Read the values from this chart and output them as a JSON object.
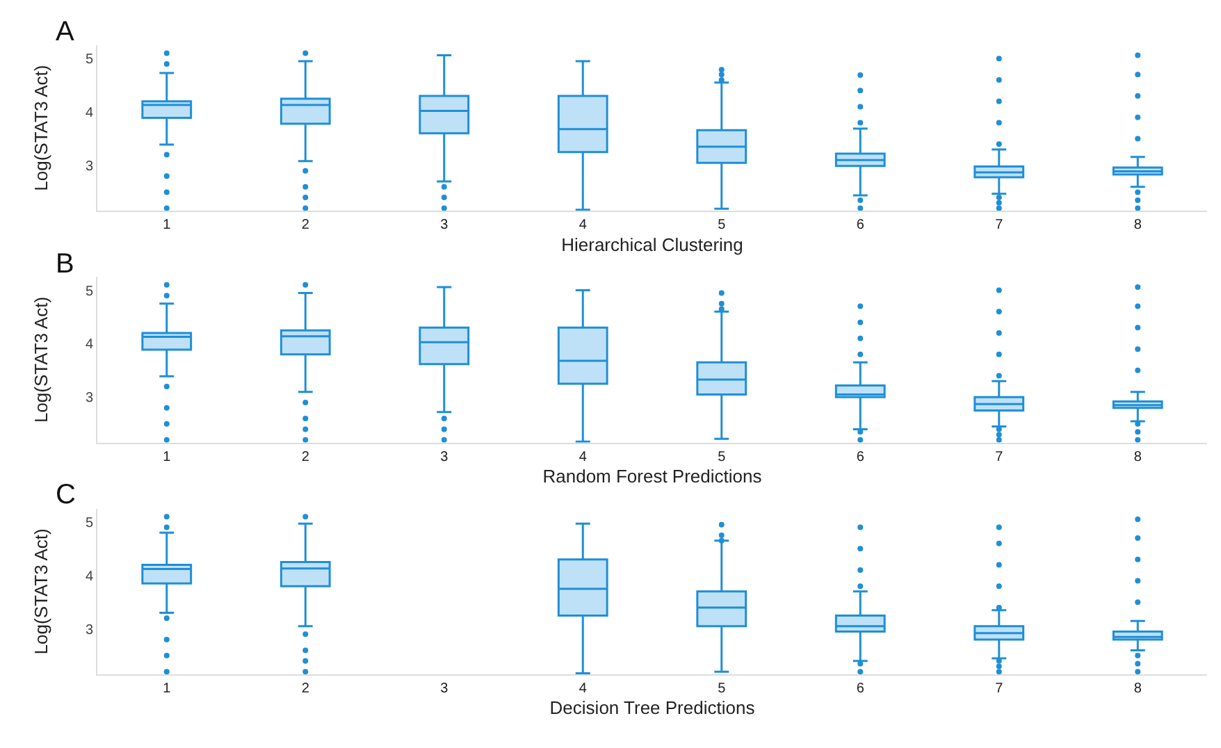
{
  "chart_data": [
    {
      "type": "box",
      "title": "A",
      "xlabel": "Hierarchical Clustering",
      "ylabel": "Log(STAT3 Act)",
      "categories": [
        "1",
        "2",
        "3",
        "4",
        "5",
        "6",
        "7",
        "8"
      ],
      "ylim": [
        2.15,
        5.25
      ],
      "yticks": [
        3,
        4,
        5
      ],
      "color": "#bfe1f8",
      "boxes": [
        {
          "low": 3.39,
          "q1": 3.89,
          "median": 4.13,
          "q3": 4.2,
          "high": 4.73,
          "outliers": [
            5.1,
            4.9,
            3.2,
            2.8,
            2.5,
            2.2
          ]
        },
        {
          "low": 3.08,
          "q1": 3.78,
          "median": 4.13,
          "q3": 4.25,
          "high": 4.95,
          "outliers": [
            5.1,
            2.9,
            2.6,
            2.4,
            2.2
          ]
        },
        {
          "low": 2.7,
          "q1": 3.6,
          "median": 4.02,
          "q3": 4.3,
          "high": 5.06,
          "outliers": [
            2.6,
            2.4,
            2.2
          ]
        },
        {
          "low": 2.17,
          "q1": 3.25,
          "median": 3.68,
          "q3": 4.3,
          "high": 4.95
        },
        {
          "low": 2.19,
          "q1": 3.05,
          "median": 3.35,
          "q3": 3.66,
          "high": 4.55,
          "outliers": [
            4.79,
            4.7,
            4.6
          ]
        },
        {
          "low": 2.44,
          "q1": 2.99,
          "median": 3.1,
          "q3": 3.22,
          "high": 3.69,
          "outliers": [
            4.69,
            4.4,
            4.1,
            3.8,
            2.35,
            2.2
          ]
        },
        {
          "low": 2.47,
          "q1": 2.78,
          "median": 2.87,
          "q3": 2.98,
          "high": 3.3,
          "outliers": [
            5.0,
            4.6,
            4.2,
            3.8,
            3.4,
            2.4,
            2.3,
            2.2
          ]
        },
        {
          "low": 2.6,
          "q1": 2.83,
          "median": 2.89,
          "q3": 2.96,
          "high": 3.16,
          "outliers": [
            5.06,
            4.7,
            4.3,
            3.9,
            3.5,
            2.5,
            2.35,
            2.2
          ]
        }
      ]
    },
    {
      "type": "box",
      "title": "B",
      "xlabel": "Random Forest Predictions",
      "ylabel": "Log(STAT3 Act)",
      "categories": [
        "1",
        "2",
        "3",
        "4",
        "5",
        "6",
        "7",
        "8"
      ],
      "ylim": [
        2.15,
        5.25
      ],
      "yticks": [
        3,
        4,
        5
      ],
      "color": "#bfe1f8",
      "boxes": [
        {
          "low": 3.39,
          "q1": 3.89,
          "median": 4.13,
          "q3": 4.2,
          "high": 4.75,
          "outliers": [
            5.1,
            4.9,
            3.2,
            2.8,
            2.5,
            2.2
          ]
        },
        {
          "low": 3.1,
          "q1": 3.8,
          "median": 4.14,
          "q3": 4.25,
          "high": 4.95,
          "outliers": [
            5.1,
            2.9,
            2.6,
            2.4,
            2.2
          ]
        },
        {
          "low": 2.72,
          "q1": 3.62,
          "median": 4.03,
          "q3": 4.3,
          "high": 5.06,
          "outliers": [
            2.6,
            2.4,
            2.2
          ]
        },
        {
          "low": 2.17,
          "q1": 3.25,
          "median": 3.68,
          "q3": 4.3,
          "high": 5.0
        },
        {
          "low": 2.22,
          "q1": 3.05,
          "median": 3.33,
          "q3": 3.65,
          "high": 4.6,
          "outliers": [
            4.95,
            4.75,
            4.65
          ]
        },
        {
          "low": 2.4,
          "q1": 3.0,
          "median": 3.05,
          "q3": 3.22,
          "high": 3.65,
          "outliers": [
            4.7,
            4.4,
            4.1,
            3.8,
            2.35,
            2.2
          ]
        },
        {
          "low": 2.45,
          "q1": 2.75,
          "median": 2.87,
          "q3": 3.0,
          "high": 3.3,
          "outliers": [
            5.0,
            4.6,
            4.2,
            3.8,
            3.4,
            2.4,
            2.3,
            2.2
          ]
        },
        {
          "low": 2.55,
          "q1": 2.8,
          "median": 2.85,
          "q3": 2.92,
          "high": 3.1,
          "outliers": [
            5.06,
            4.7,
            4.3,
            3.9,
            3.5,
            2.5,
            2.35,
            2.2
          ]
        }
      ]
    },
    {
      "type": "box",
      "title": "C",
      "xlabel": "Decision Tree Predictions",
      "ylabel": "Log(STAT3 Act)",
      "categories": [
        "1",
        "2",
        "3",
        "4",
        "5",
        "6",
        "7",
        "8"
      ],
      "ylim": [
        2.15,
        5.25
      ],
      "yticks": [
        3,
        4,
        5
      ],
      "color": "#bfe1f8",
      "boxes": [
        {
          "low": 3.3,
          "q1": 3.85,
          "median": 4.12,
          "q3": 4.2,
          "high": 4.8,
          "outliers": [
            5.1,
            4.9,
            3.2,
            2.8,
            2.5,
            2.2
          ]
        },
        {
          "low": 3.05,
          "q1": 3.8,
          "median": 4.13,
          "q3": 4.25,
          "high": 4.97,
          "outliers": [
            5.1,
            2.9,
            2.6,
            2.4,
            2.2
          ]
        },
        null,
        {
          "low": 2.17,
          "q1": 3.25,
          "median": 3.75,
          "q3": 4.3,
          "high": 4.97
        },
        {
          "low": 2.2,
          "q1": 3.05,
          "median": 3.4,
          "q3": 3.7,
          "high": 4.65,
          "outliers": [
            4.95,
            4.75,
            4.65
          ]
        },
        {
          "low": 2.4,
          "q1": 2.95,
          "median": 3.05,
          "q3": 3.25,
          "high": 3.7,
          "outliers": [
            4.9,
            4.5,
            4.1,
            3.8,
            2.35,
            2.2
          ]
        },
        {
          "low": 2.45,
          "q1": 2.8,
          "median": 2.92,
          "q3": 3.05,
          "high": 3.35,
          "outliers": [
            4.9,
            4.6,
            4.2,
            3.8,
            3.4,
            2.4,
            2.3,
            2.2
          ]
        },
        {
          "low": 2.6,
          "q1": 2.8,
          "median": 2.85,
          "q3": 2.95,
          "high": 3.15,
          "outliers": [
            5.05,
            4.7,
            4.3,
            3.9,
            3.5,
            2.5,
            2.35,
            2.2
          ]
        }
      ]
    }
  ]
}
